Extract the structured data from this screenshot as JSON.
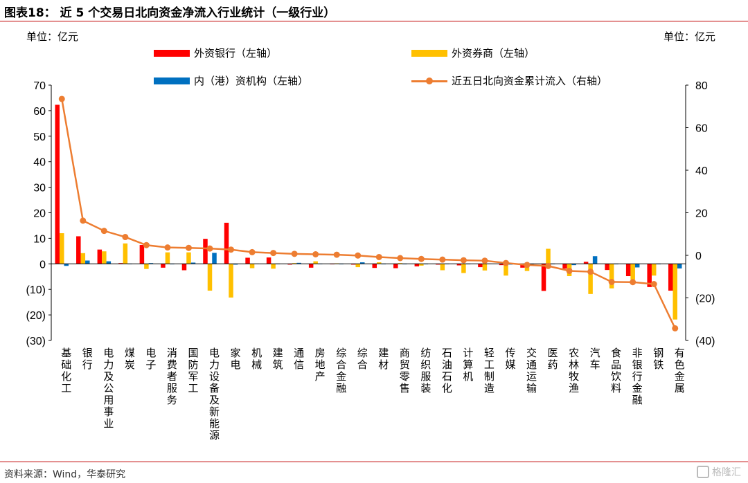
{
  "header": {
    "title": "图表18：  近 5 个交易日北向资金净流入行业统计（一级行业）"
  },
  "units": {
    "left": "单位：亿元",
    "right": "单位：亿元"
  },
  "footer": {
    "source": "资料来源：Wind，华泰研究",
    "watermark": "格隆汇"
  },
  "colors": {
    "foreign_bank": "#FF0000",
    "foreign_broker": "#FFC000",
    "hk_institution": "#0070C0",
    "cumulative": "#ED7D31",
    "rule": "#C00000"
  },
  "chart_data": {
    "type": "bar",
    "categories": [
      "基础化工",
      "银行",
      "电力及公用事业",
      "煤炭",
      "电子",
      "消费者服务",
      "国防军工",
      "电力设备及新能源",
      "家电",
      "机械",
      "建筑",
      "通信",
      "房地产",
      "综合金融",
      "综合",
      "建材",
      "商贸零售",
      "纺织服装",
      "石油石化",
      "计算机",
      "轻工制造",
      "传媒",
      "交通运输",
      "医药",
      "农林牧渔",
      "汽车",
      "食品饮料",
      "非银行金融",
      "钢铁",
      "有色金属"
    ],
    "series": [
      {
        "name": "外资银行（左轴）",
        "axis": "left",
        "kind": "bar",
        "values": [
          62.3,
          10.8,
          5.6,
          0.3,
          7.4,
          -1.5,
          -2.5,
          9.8,
          16.1,
          2.4,
          2.5,
          -0.3,
          -1.5,
          -0.2,
          -0.3,
          -1.6,
          -1.7,
          -1.0,
          -0.3,
          -0.6,
          -1.3,
          -0.5,
          -1.5,
          -10.6,
          -1.9,
          0.8,
          -2.4,
          -4.8,
          -9.1,
          -10.5
        ]
      },
      {
        "name": "外资券商（左轴）",
        "axis": "left",
        "kind": "bar",
        "values": [
          12.0,
          4.2,
          4.9,
          8.0,
          -2.0,
          4.5,
          4.5,
          -10.5,
          -13.2,
          -1.7,
          -1.9,
          0.3,
          1.0,
          0.2,
          -1.3,
          0.6,
          0.3,
          -0.7,
          -2.5,
          -3.6,
          -2.6,
          -4.6,
          -2.8,
          5.9,
          -4.8,
          -11.8,
          -9.6,
          -6.2,
          -4.6,
          -21.8
        ]
      },
      {
        "name": "内（港）资机构（左轴）",
        "axis": "left",
        "kind": "bar",
        "values": [
          -0.8,
          1.3,
          1.0,
          -0.1,
          0.3,
          -0.2,
          0.5,
          4.3,
          -0.3,
          0.1,
          -0.1,
          0.4,
          -0.1,
          -0.2,
          0.6,
          -0.2,
          -0.2,
          -0.2,
          -0.1,
          -0.2,
          0.1,
          -0.3,
          -0.2,
          -0.2,
          -0.5,
          3.0,
          -0.2,
          -1.4,
          -0.2,
          -1.8
        ]
      },
      {
        "name": "近五日北向资金累计流入（右轴）",
        "axis": "right",
        "kind": "line",
        "values": [
          73.5,
          16.3,
          11.5,
          8.6,
          4.8,
          3.7,
          3.5,
          3.2,
          2.7,
          1.5,
          1.1,
          0.7,
          0.5,
          0.3,
          -0.1,
          -0.8,
          -1.3,
          -1.7,
          -2.0,
          -2.3,
          -2.5,
          -3.6,
          -4.5,
          -5.0,
          -7.3,
          -7.7,
          -12.5,
          -12.6,
          -13.5,
          -34.3
        ]
      }
    ],
    "left_axis": {
      "min": -30,
      "max": 70,
      "ticks": [
        "(30)",
        "(20)",
        "(10)",
        "0",
        "10",
        "20",
        "30",
        "40",
        "50",
        "60",
        "70"
      ]
    },
    "right_axis": {
      "min": -40,
      "max": 80,
      "ticks": [
        "(40)",
        "(20)",
        "0",
        "20",
        "40",
        "60",
        "80"
      ]
    },
    "legend_position": "top"
  }
}
